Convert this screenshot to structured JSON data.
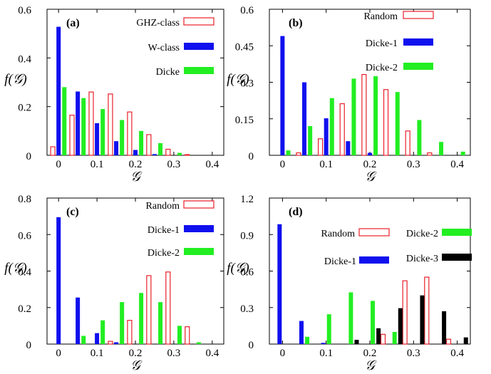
{
  "chart_data": [
    {
      "type": "bar",
      "panel_label": "(a)",
      "xlabel": "𝒢",
      "ylabel": "f(𝒢)",
      "xlim": [
        -0.03,
        0.43
      ],
      "ylim": [
        0,
        0.6
      ],
      "x_ticks": [
        "0",
        "0.1",
        "0.2",
        "0.3",
        "0.4"
      ],
      "y_ticks": [
        "0",
        "0.2",
        "0.4",
        "0.6"
      ],
      "x": [
        0,
        0.05,
        0.1,
        0.15,
        0.2,
        0.25,
        0.3,
        0.35,
        0.4
      ],
      "series": [
        {
          "name": "GHZ-class",
          "style": "outline",
          "color": "#e8202a",
          "values": [
            0.035,
            0.165,
            0.26,
            0.252,
            0.178,
            0.085,
            0.025,
            0.003,
            0
          ]
        },
        {
          "name": "W-class",
          "style": "filled",
          "color": "#1010ee",
          "values": [
            0.528,
            0.262,
            0.132,
            0.058,
            0.022,
            0.005,
            0,
            0,
            0
          ]
        },
        {
          "name": "Dicke",
          "style": "filled",
          "color": "#22ee22",
          "values": [
            0.28,
            0.235,
            0.19,
            0.145,
            0.1,
            0.05,
            0.01,
            0,
            0
          ]
        }
      ],
      "legend": "top-right",
      "grid": false
    },
    {
      "type": "bar",
      "panel_label": "(b)",
      "xlabel": "𝒢",
      "ylabel": "f(𝒢)",
      "xlim": [
        -0.03,
        0.43
      ],
      "ylim": [
        0,
        0.6
      ],
      "x_ticks": [
        "0",
        "0.1",
        "0.2",
        "0.3",
        "0.4"
      ],
      "y_ticks": [
        "0",
        "0.15",
        "0.3",
        "0.45",
        "0.6"
      ],
      "x": [
        0,
        0.05,
        0.1,
        0.15,
        0.2,
        0.25,
        0.3,
        0.35,
        0.4
      ],
      "series": [
        {
          "name": "Random",
          "style": "outline",
          "color": "#e8202a",
          "values": [
            0,
            0.01,
            0.068,
            0.212,
            0.332,
            0.27,
            0.1,
            0.01,
            0
          ]
        },
        {
          "name": "Dicke-1",
          "style": "filled",
          "color": "#1010ee",
          "values": [
            0.49,
            0.3,
            0.152,
            0.058,
            0.01,
            0,
            0,
            0,
            0
          ]
        },
        {
          "name": "Dicke-2",
          "style": "filled",
          "color": "#22ee22",
          "values": [
            0.02,
            0.12,
            0.235,
            0.315,
            0.325,
            0.26,
            0.145,
            0.055,
            0.015
          ]
        }
      ],
      "legend": "top-right",
      "grid": false
    },
    {
      "type": "bar",
      "panel_label": "(c)",
      "xlabel": "𝒢",
      "ylabel": "f(𝒢)",
      "xlim": [
        -0.03,
        0.43
      ],
      "ylim": [
        0,
        0.8
      ],
      "x_ticks": [
        "0",
        "0.1",
        "0.2",
        "0.3",
        "0.4"
      ],
      "y_ticks": [
        "0",
        "0.2",
        "0.4",
        "0.6",
        "0.8"
      ],
      "x": [
        0,
        0.05,
        0.1,
        0.15,
        0.2,
        0.25,
        0.3,
        0.35,
        0.4
      ],
      "series": [
        {
          "name": "Random",
          "style": "outline",
          "color": "#e8202a",
          "values": [
            0,
            0,
            0,
            0.015,
            0.13,
            0.375,
            0.395,
            0.095,
            0
          ]
        },
        {
          "name": "Dicke-1",
          "style": "filled",
          "color": "#1010ee",
          "values": [
            0.695,
            0.255,
            0.06,
            0.01,
            0,
            0,
            0,
            0,
            0
          ]
        },
        {
          "name": "Dicke-2",
          "style": "filled",
          "color": "#22ee22",
          "values": [
            0,
            0.045,
            0.13,
            0.23,
            0.28,
            0.23,
            0.1,
            0.01,
            0
          ]
        }
      ],
      "legend": "top-right",
      "grid": false
    },
    {
      "type": "bar",
      "panel_label": "(d)",
      "xlabel": "𝒢",
      "ylabel": "f(𝒢)",
      "xlim": [
        -0.03,
        0.43
      ],
      "ylim": [
        0,
        1.2
      ],
      "x_ticks": [
        "0",
        "0.1",
        "0.2",
        "0.3",
        "0.4"
      ],
      "y_ticks": [
        "0",
        "0.3",
        "0.6",
        "0.9",
        "1.2"
      ],
      "x": [
        0,
        0.05,
        0.1,
        0.15,
        0.2,
        0.25,
        0.3,
        0.35,
        0.4
      ],
      "series": [
        {
          "name": "Random",
          "style": "outline",
          "color": "#e8202a",
          "values": [
            0,
            0,
            0,
            0,
            0,
            0.08,
            0.52,
            0.55,
            0.04
          ]
        },
        {
          "name": "Dicke-1",
          "style": "filled",
          "color": "#1010ee",
          "values": [
            0.985,
            0.19,
            0.01,
            0,
            0,
            0,
            0,
            0,
            0
          ]
        },
        {
          "name": "Dicke-2",
          "style": "filled",
          "color": "#22ee22",
          "values": [
            0,
            0.06,
            0.245,
            0.425,
            0.355,
            0.1,
            0,
            0,
            0
          ]
        },
        {
          "name": "Dicke-3",
          "style": "filled",
          "color": "#000000",
          "values": [
            0,
            0,
            0,
            0.035,
            0.13,
            0.295,
            0.4,
            0.27,
            0.055
          ]
        }
      ],
      "legend": "top-right-two-column",
      "grid": false
    }
  ]
}
